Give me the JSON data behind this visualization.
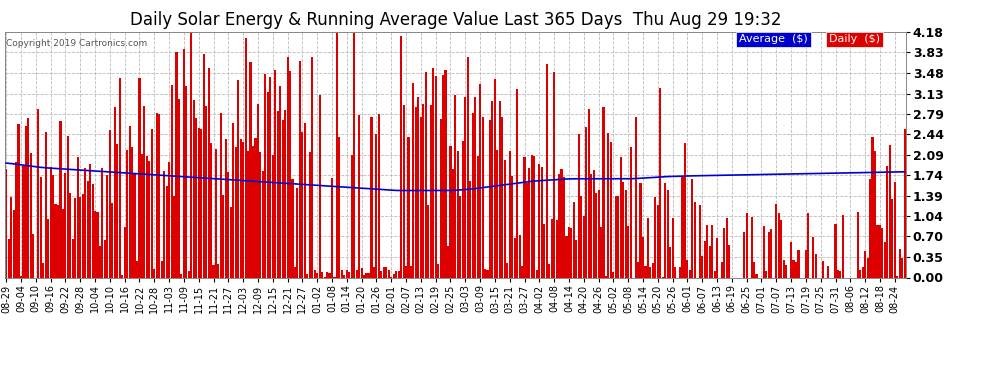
{
  "title": "Daily Solar Energy & Running Average Value Last 365 Days  Thu Aug 29 19:32",
  "copyright": "Copyright 2019 Cartronics.com",
  "ylabel_right_ticks": [
    0.0,
    0.35,
    0.7,
    1.04,
    1.39,
    1.74,
    2.09,
    2.44,
    2.79,
    3.13,
    3.48,
    3.83,
    4.18
  ],
  "ylim": [
    0.0,
    4.18
  ],
  "bar_color": "#dd0000",
  "avg_color": "#0000cc",
  "background_color": "#ffffff",
  "plot_bg_color": "#ffffff",
  "grid_color": "#bbbbbb",
  "title_fontsize": 12,
  "legend_avg_bg": "#0000cc",
  "legend_daily_bg": "#dd0000",
  "legend_text_color": "#ffffff",
  "x_tick_labels": [
    "08-29",
    "09-04",
    "09-10",
    "09-16",
    "09-22",
    "09-28",
    "10-04",
    "10-10",
    "10-16",
    "10-22",
    "10-28",
    "11-03",
    "11-09",
    "11-15",
    "11-21",
    "11-27",
    "12-03",
    "12-09",
    "12-15",
    "12-21",
    "12-27",
    "01-02",
    "01-08",
    "01-14",
    "01-20",
    "01-26",
    "02-01",
    "02-07",
    "02-13",
    "02-19",
    "02-25",
    "03-03",
    "03-09",
    "03-15",
    "03-21",
    "03-27",
    "04-02",
    "04-08",
    "04-14",
    "04-20",
    "04-26",
    "05-02",
    "05-08",
    "05-14",
    "05-20",
    "05-26",
    "06-01",
    "06-07",
    "06-13",
    "06-19",
    "06-25",
    "07-01",
    "07-07",
    "07-13",
    "07-19",
    "07-25",
    "07-31",
    "08-06",
    "08-12",
    "08-18",
    "08-24"
  ],
  "avg_shape": [
    1.95,
    1.93,
    1.91,
    1.89,
    1.87,
    1.86,
    1.85,
    1.84,
    1.83,
    1.82,
    1.81,
    1.8,
    1.79,
    1.78,
    1.77,
    1.76,
    1.75,
    1.74,
    1.73,
    1.72,
    1.71,
    1.7,
    1.69,
    1.68,
    1.67,
    1.66,
    1.65,
    1.64,
    1.63,
    1.62,
    1.61,
    1.6,
    1.59,
    1.58,
    1.57,
    1.56,
    1.55,
    1.54,
    1.53,
    1.52,
    1.51,
    1.5,
    1.49,
    1.48,
    1.48,
    1.48,
    1.48,
    1.48,
    1.48,
    1.48,
    1.49,
    1.5,
    1.52,
    1.54,
    1.56,
    1.58,
    1.6,
    1.62,
    1.64,
    1.65,
    1.66,
    1.67,
    1.68,
    1.68,
    1.68,
    1.68,
    1.68,
    1.68,
    1.68,
    1.68,
    1.69,
    1.7,
    1.71,
    1.72,
    1.72,
    1.73,
    1.73,
    1.74,
    1.74,
    1.74,
    1.74,
    1.74,
    1.74,
    1.74,
    1.74,
    1.74,
    1.74,
    1.74,
    1.74,
    1.74,
    1.74,
    1.74,
    1.74,
    1.74,
    1.74,
    1.74,
    1.74,
    1.74,
    1.74,
    1.74
  ]
}
